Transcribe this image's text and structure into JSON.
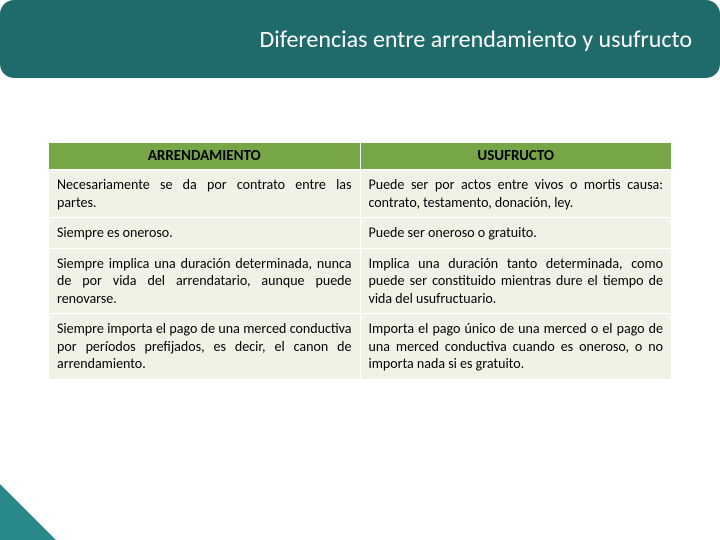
{
  "title": "Diferencias entre arrendamiento y usufructo",
  "table": {
    "headers": [
      "ARRENDAMIENTO",
      "USUFRUCTO"
    ],
    "rows": [
      [
        "Necesariamente se da por contrato entre las partes.",
        "Puede ser por actos entre vivos o mortis causa: contrato, testamento, donación, ley."
      ],
      [
        "Siempre es oneroso.",
        "Puede ser oneroso o gratuito."
      ],
      [
        "Siempre implica una duración determinada, nunca de por vida del arrendatario, aunque puede renovarse.",
        "Implica una duración tanto determinada, como puede ser constituido mientras dure el tiempo de vida del usufructuario."
      ],
      [
        "Siempre importa el pago de una merced conductiva por períodos prefijados, es decir, el canon de arrendamiento.",
        "Importa el pago único de una merced o el pago de una merced conductiva cuando es oneroso, o no importa nada si es gratuito."
      ]
    ]
  },
  "colors": {
    "title_bar": "#1f6b6b",
    "header_bg": "#76a646",
    "cell_bg": "#eef3e6",
    "accent": "#2a8a8a"
  }
}
